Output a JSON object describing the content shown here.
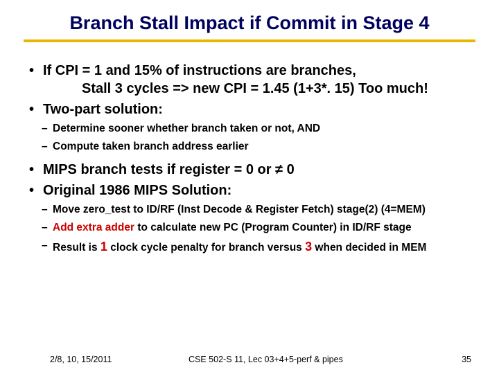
{
  "title": "Branch Stall Impact if Commit in Stage 4",
  "bullets": {
    "b1_line1": "If CPI = 1 and 15% of instructions are branches,",
    "b1_line2": "Stall 3 cycles => new CPI = 1.45  (1+3*. 15) Too much!",
    "b2": "Two-part solution:",
    "b2_sub1": "Determine sooner whether branch taken or not, AND",
    "b2_sub2": "Compute taken branch address earlier",
    "b3": "MIPS branch tests if register = 0 or ≠ 0",
    "b4": "Original 1986 MIPS Solution:",
    "b4_sub1": "Move zero_test to ID/RF (Inst Decode & Register Fetch) stage(2)  (4=MEM)",
    "b4_sub2_a": "Add extra adder",
    "b4_sub2_b": " to calculate new PC (Program Counter) in ID/RF stage",
    "b4_sub3_a": "Result is ",
    "b4_sub3_b": "1",
    "b4_sub3_c": " clock cycle penalty for branch versus ",
    "b4_sub3_d": "3",
    "b4_sub3_e": " when decided in MEM"
  },
  "footer": {
    "date": "2/8, 10, 15/2011",
    "course": "CSE 502-S 11, Lec 03+4+5-perf & pipes",
    "page": "35"
  },
  "colors": {
    "title_color": "#000060",
    "underline_color": "#e8b800",
    "highlight_color": "#cc0000",
    "background": "#ffffff"
  },
  "typography": {
    "title_fontsize": 27,
    "main_bullet_fontsize": 20,
    "sub_bullet_fontsize": 15.5,
    "footer_fontsize": 12.5,
    "font_family": "Arial"
  }
}
